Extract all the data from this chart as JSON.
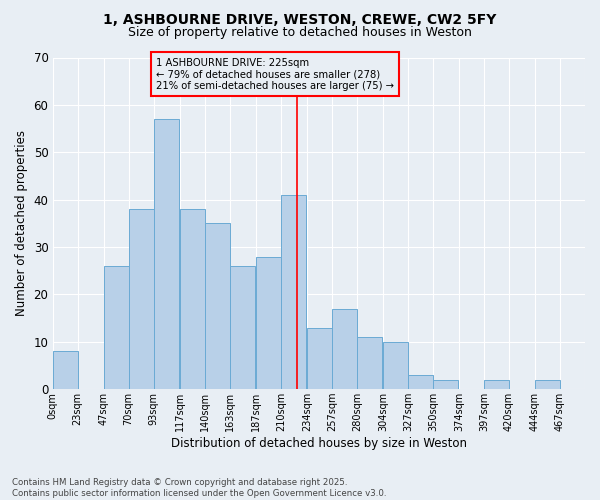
{
  "title": "1, ASHBOURNE DRIVE, WESTON, CREWE, CW2 5FY",
  "subtitle": "Size of property relative to detached houses in Weston",
  "xlabel": "Distribution of detached houses by size in Weston",
  "ylabel": "Number of detached properties",
  "bar_values": [
    8,
    0,
    26,
    38,
    57,
    38,
    35,
    26,
    28,
    41,
    13,
    17,
    11,
    10,
    3,
    2,
    0,
    2,
    0,
    2
  ],
  "bin_labels": [
    "0sqm",
    "23sqm",
    "47sqm",
    "70sqm",
    "93sqm",
    "117sqm",
    "140sqm",
    "163sqm",
    "187sqm",
    "210sqm",
    "234sqm",
    "257sqm",
    "280sqm",
    "304sqm",
    "327sqm",
    "350sqm",
    "374sqm",
    "397sqm",
    "420sqm",
    "444sqm",
    "467sqm"
  ],
  "bar_color": "#b8d0e8",
  "bar_edge_color": "#6aaad4",
  "bg_color": "#e8eef4",
  "grid_color": "#ffffff",
  "vline_color": "red",
  "annotation_text": "1 ASHBOURNE DRIVE: 225sqm\n← 79% of detached houses are smaller (278)\n21% of semi-detached houses are larger (75) →",
  "annotation_box_color": "red",
  "footnote": "Contains HM Land Registry data © Crown copyright and database right 2025.\nContains public sector information licensed under the Open Government Licence v3.0.",
  "ylim": [
    0,
    70
  ],
  "vline_x_label_index": 9
}
